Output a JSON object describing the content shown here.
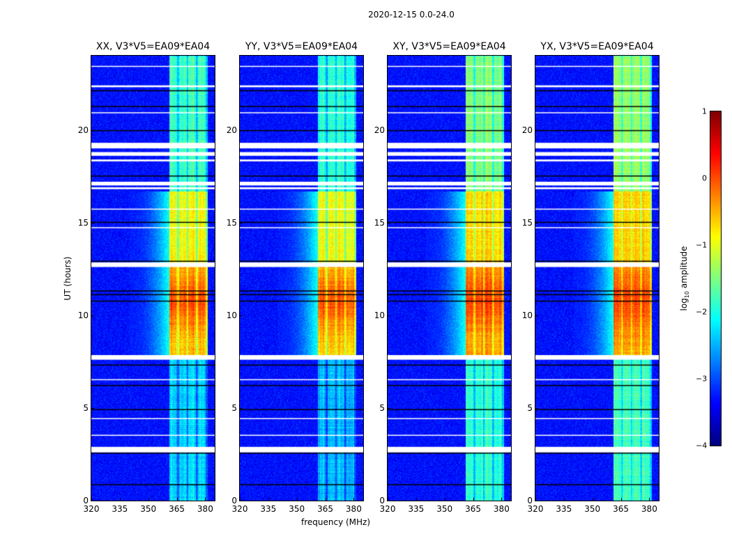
{
  "suptitle": "2020-12-15 0.0-24.0",
  "chart_data": {
    "type": "heatmap",
    "title": "2020-12-15 0.0-24.0",
    "panels": [
      {
        "title": "XX, V3*V5=EA09*EA04",
        "signal_scale": 1.0
      },
      {
        "title": "YY, V3*V5=EA09*EA04",
        "signal_scale": 1.05
      },
      {
        "title": "XY, V3*V5=EA09*EA04",
        "signal_scale": 0.85
      },
      {
        "title": "YX, V3*V5=EA09*EA04",
        "signal_scale": 0.8
      }
    ],
    "xlabel": "frequency (MHz)",
    "ylabel": "UT (hours)",
    "xlim": [
      320,
      385
    ],
    "ylim": [
      0,
      24
    ],
    "xticks": [
      320,
      335,
      350,
      365,
      380
    ],
    "yticks": [
      0,
      5,
      10,
      15,
      20
    ],
    "colorbar": {
      "label": "log10 amplitude",
      "label_main": "log",
      "label_sub": "10",
      "label_rest": " amplitude",
      "range": [
        -4,
        1
      ],
      "ticks": [
        "1",
        "0",
        "−1",
        "−2",
        "−3",
        "−4"
      ],
      "colormap": "jet"
    },
    "background_level": -3.3,
    "rfi_subbands_mhz": [
      [
        361,
        365
      ],
      [
        366,
        370
      ],
      [
        371,
        375
      ],
      [
        376,
        380
      ]
    ],
    "rfi_levels_by_time": [
      {
        "hours": [
          0,
          7.8
        ],
        "level": -2.0
      },
      {
        "hours": [
          7.8,
          12.7
        ],
        "level": -0.3
      },
      {
        "hours": [
          12.7,
          16.7
        ],
        "level": -0.6
      },
      {
        "hours": [
          16.7,
          24
        ],
        "level": -1.5
      }
    ],
    "flagged_white_hours": [
      [
        2.6,
        2.9
      ],
      [
        7.6,
        7.85
      ],
      [
        12.6,
        12.85
      ],
      [
        17.0,
        17.2
      ],
      [
        18.3,
        18.4
      ],
      [
        18.6,
        18.8
      ],
      [
        19.0,
        19.3
      ],
      [
        22.3,
        22.4
      ],
      [
        16.8,
        16.9
      ],
      [
        6.5,
        6.55
      ],
      [
        3.5,
        3.55
      ],
      [
        4.4,
        4.45
      ],
      [
        14.7,
        14.75
      ],
      [
        15.7,
        15.75
      ],
      [
        20.9,
        20.95
      ],
      [
        23.4,
        23.45
      ]
    ],
    "dark_line_hours": [
      0.85,
      4.9,
      6.2,
      10.75,
      11.1,
      11.3,
      15.0,
      19.95,
      21.25,
      22.1,
      2.55,
      7.3,
      12.9,
      17.5
    ]
  }
}
